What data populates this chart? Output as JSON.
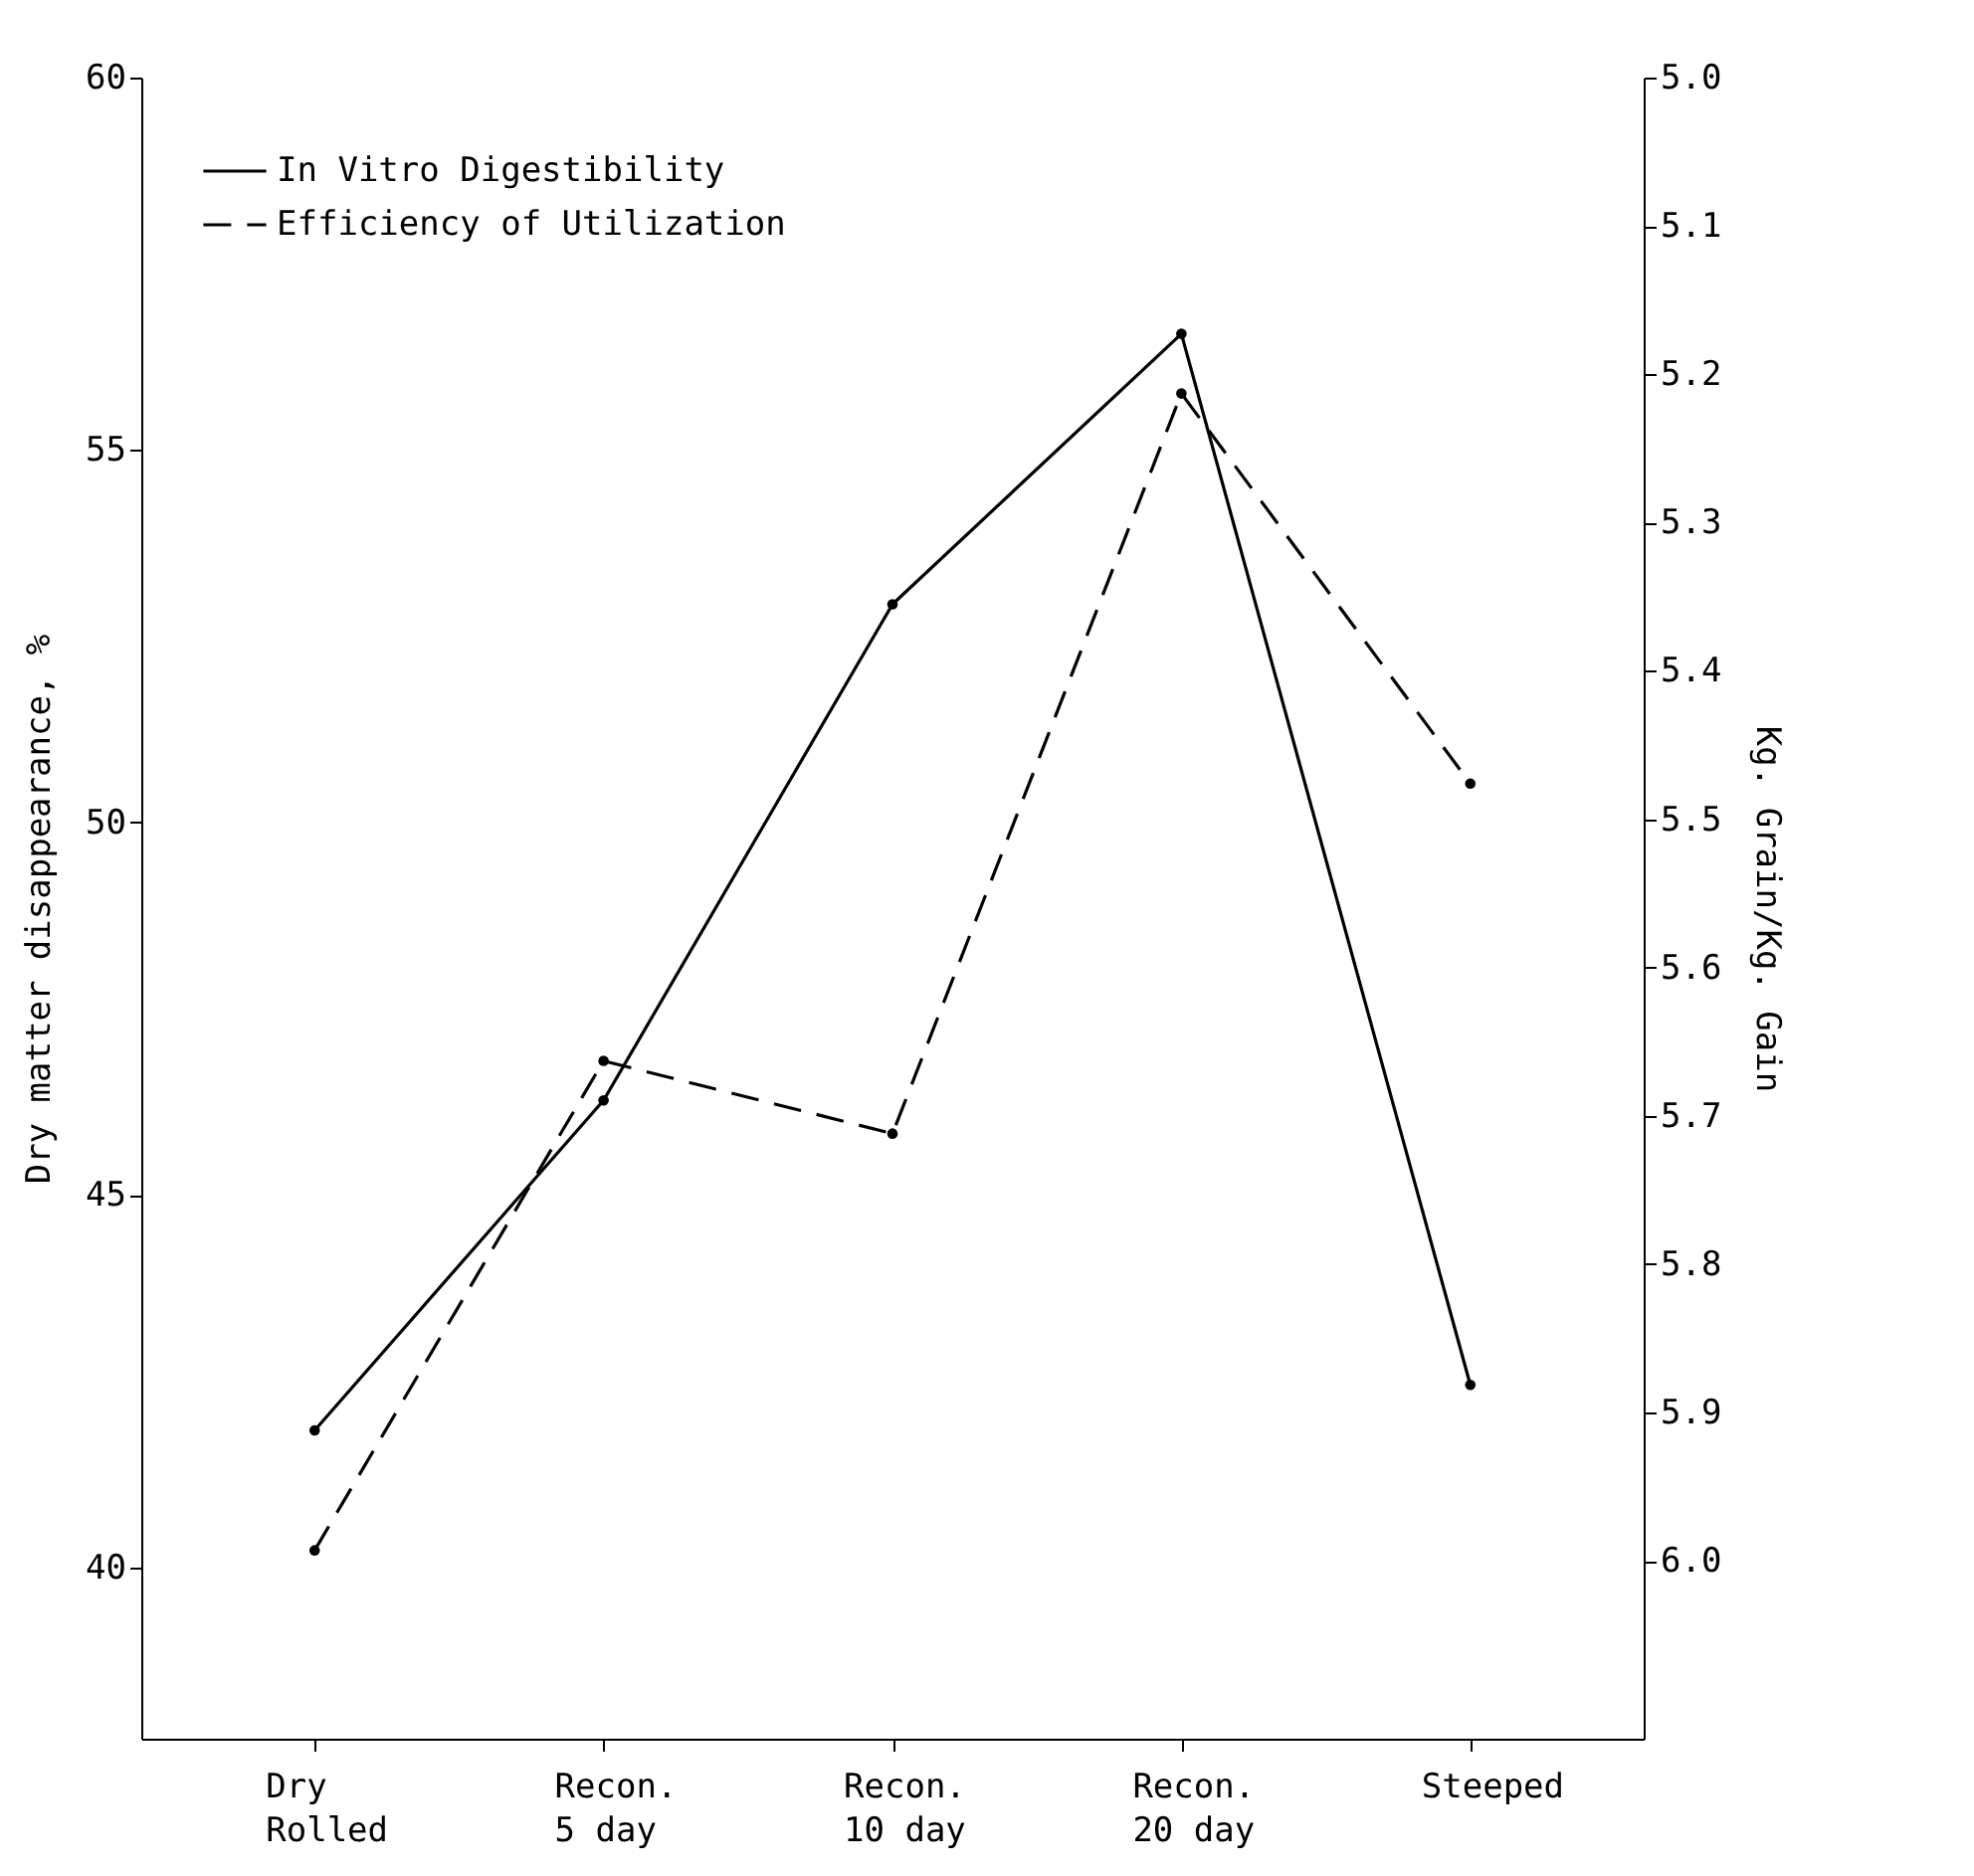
{
  "chart_data": {
    "type": "line",
    "categories": [
      "Dry\nRolled",
      "Recon.\n5 day",
      "Recon.\n10 day",
      "Recon.\n20 day",
      "Steeped"
    ],
    "series": [
      {
        "name": "In Vitro Digestibility",
        "color": "#000000",
        "line_style": "solid",
        "values": [
          41.84,
          46.27,
          52.93,
          56.56,
          42.45
        ]
      },
      {
        "name": "Efficiency of Utilization",
        "color": "#000000",
        "line_style": "dashed",
        "axis": "y2",
        "values": [
          5.993,
          5.663,
          5.712,
          5.213,
          5.476
        ]
      }
    ],
    "ylabel": "Dry matter disappearance, %",
    "y2label": "Kg. Grain/Kg. Gain",
    "ylim": [
      37.7,
      60
    ],
    "yticks": [
      40,
      45,
      50,
      55,
      60
    ],
    "y2lim": [
      6.12,
      5.0
    ],
    "y2ticks": [
      {
        "value": 5,
        "label": "5.0"
      },
      5.1,
      5.2,
      5.3,
      5.4,
      5.5,
      5.6,
      5.7,
      5.8,
      5.9,
      {
        "value": 6,
        "label": "6.0"
      }
    ],
    "grid": false,
    "legend": "top left",
    "marker": "circle"
  }
}
